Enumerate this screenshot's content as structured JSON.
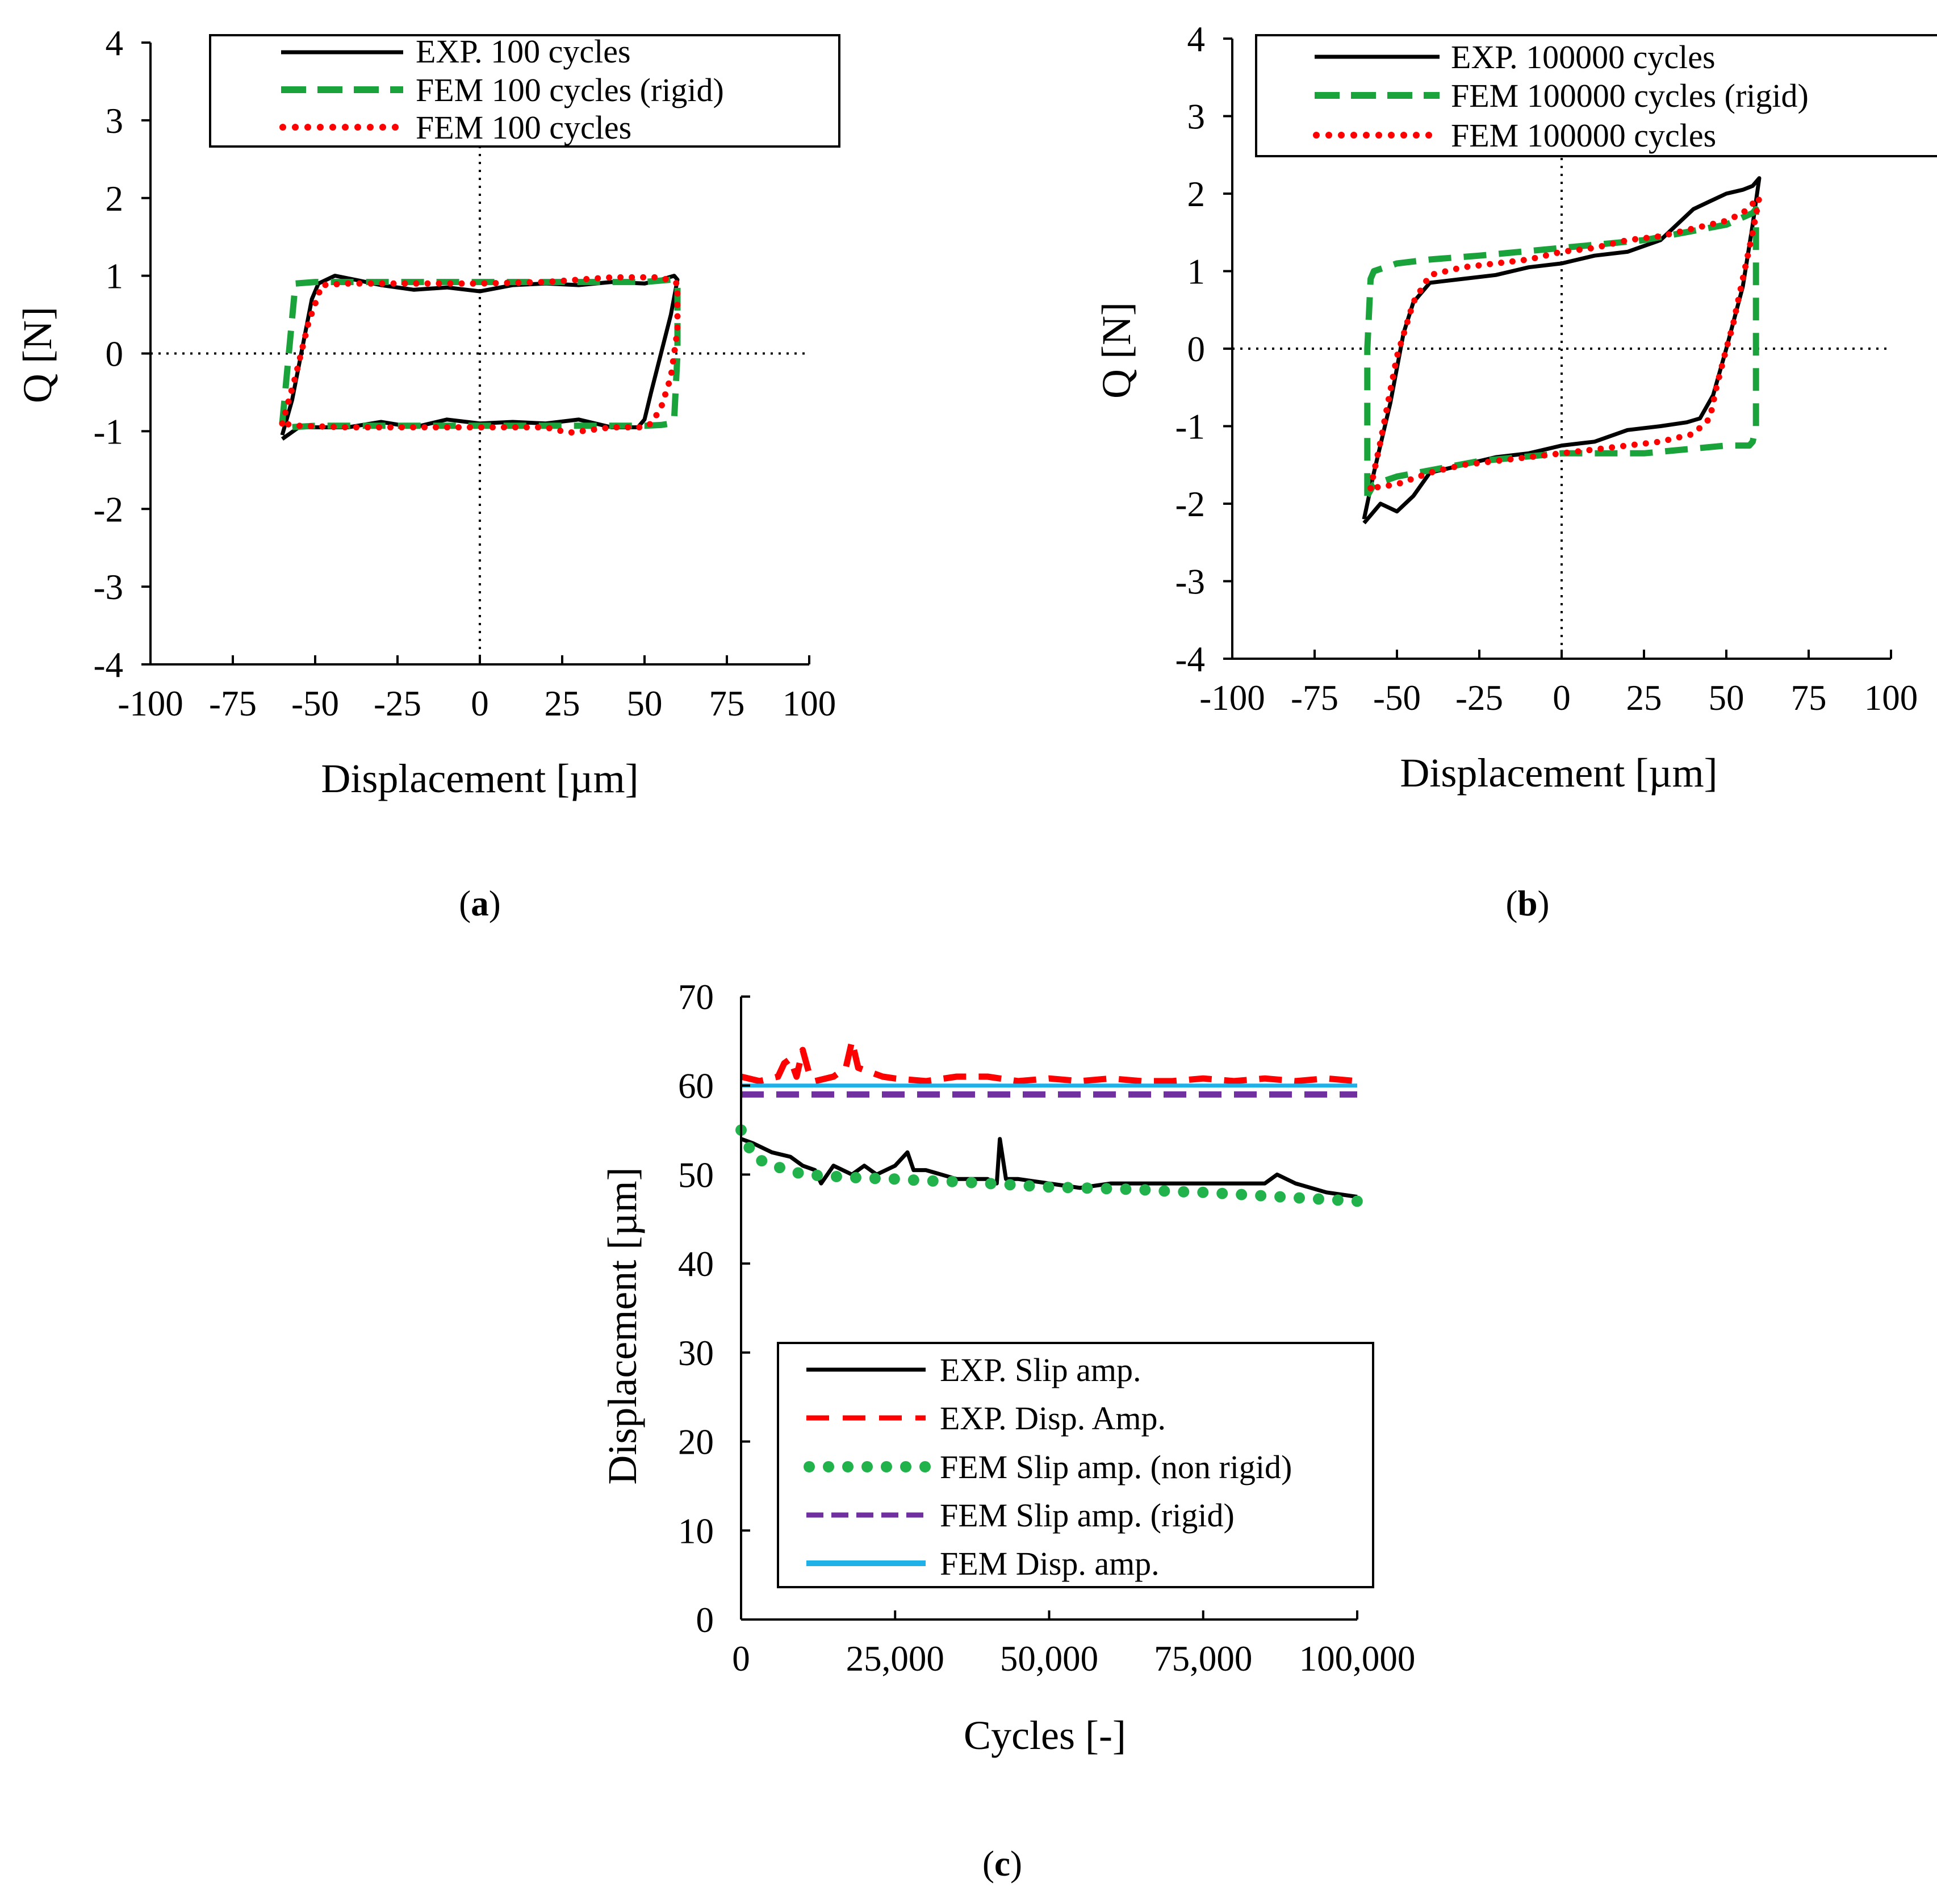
{
  "figure": {
    "panel_labels": [
      {
        "open": "(",
        "letter": "a",
        "close": ")"
      },
      {
        "open": "(",
        "letter": "b",
        "close": ")"
      },
      {
        "open": "(",
        "letter": "c",
        "close": ")"
      }
    ]
  },
  "colors": {
    "exp": "#000000",
    "fem_rigid_green": "#1aa33a",
    "fem_red": "#ff0000",
    "fem_dots_green": "#22b24c",
    "fem_rigid_purple": "#7030a0",
    "fem_disp_blue": "#1fb0e8"
  },
  "chart_data": [
    {
      "id": "a",
      "type": "line",
      "xlabel": "Displacement [µm]",
      "ylabel": "Q [N]",
      "xlim": [
        -100,
        100
      ],
      "ylim": [
        -4,
        4
      ],
      "xticks": [
        -100,
        -75,
        -50,
        -25,
        0,
        25,
        50,
        75,
        100
      ],
      "yticks": [
        4,
        3,
        2,
        1,
        0,
        -1,
        -2,
        -3,
        -4
      ],
      "xtick_labels": [
        "-100",
        "-75",
        "-50",
        "-25",
        "0",
        "25",
        "50",
        "75",
        "100"
      ],
      "ytick_labels": [
        "4",
        "3",
        "2",
        "1",
        "0",
        "-1",
        "-2",
        "-3",
        "-4"
      ],
      "legend_position": "top",
      "series": [
        {
          "name": "EXP. 100 cycles",
          "style": "solid",
          "color_key": "exp",
          "x": [
            -60,
            -57,
            -51,
            -49,
            -44,
            -38,
            -30,
            -20,
            -10,
            0,
            10,
            20,
            30,
            40,
            50,
            55,
            59,
            60,
            58,
            55,
            52,
            50,
            48,
            45,
            40,
            30,
            20,
            10,
            0,
            -10,
            -20,
            -30,
            -40,
            -50,
            -55,
            -60
          ],
          "y": [
            -1.05,
            -0.6,
            0.7,
            0.9,
            1.0,
            0.95,
            0.88,
            0.82,
            0.85,
            0.8,
            0.88,
            0.9,
            0.88,
            0.92,
            0.9,
            0.95,
            1.0,
            0.95,
            0.5,
            0.0,
            -0.5,
            -0.85,
            -0.95,
            -0.95,
            -0.95,
            -0.85,
            -0.9,
            -0.88,
            -0.9,
            -0.85,
            -0.95,
            -0.88,
            -0.95,
            -0.95,
            -0.95,
            -1.1
          ]
        },
        {
          "name": "FEM 100 cycles (rigid)",
          "style": "dashed",
          "color_key": "fem_rigid_green",
          "x": [
            -60,
            -58,
            -56,
            -50,
            -25,
            0,
            25,
            50,
            58,
            60,
            60,
            59,
            58,
            55,
            50,
            25,
            0,
            -25,
            -50,
            -58,
            -60
          ],
          "y": [
            -0.9,
            0.0,
            0.9,
            0.92,
            0.92,
            0.92,
            0.92,
            0.92,
            0.95,
            0.9,
            0.0,
            -0.85,
            -0.9,
            -0.92,
            -0.93,
            -0.93,
            -0.93,
            -0.93,
            -0.93,
            -0.95,
            -0.9
          ]
        },
        {
          "name": "FEM 100 cycles",
          "style": "dotted",
          "color_key": "fem_red",
          "x": [
            -60,
            -56,
            -52,
            -48,
            -40,
            -20,
            0,
            20,
            40,
            55,
            60,
            60,
            58,
            55,
            52,
            50,
            40,
            27,
            20,
            0,
            -20,
            -40,
            -55,
            -60
          ],
          "y": [
            -0.9,
            -0.3,
            0.4,
            0.88,
            0.9,
            0.9,
            0.9,
            0.92,
            0.98,
            0.98,
            0.9,
            0.3,
            -0.3,
            -0.7,
            -0.9,
            -0.95,
            -0.95,
            -1.02,
            -0.95,
            -0.95,
            -0.95,
            -0.95,
            -0.93,
            -0.9
          ]
        }
      ]
    },
    {
      "id": "b",
      "type": "line",
      "xlabel": "Displacement [µm]",
      "ylabel": "Q [N]",
      "xlim": [
        -100,
        100
      ],
      "ylim": [
        -4,
        4
      ],
      "xticks": [
        -100,
        -75,
        -50,
        -25,
        0,
        25,
        50,
        75,
        100
      ],
      "yticks": [
        4,
        3,
        2,
        1,
        0,
        -1,
        -2,
        -3,
        -4
      ],
      "xtick_labels": [
        "-100",
        "-75",
        "-50",
        "-25",
        "0",
        "25",
        "50",
        "75",
        "100"
      ],
      "ytick_labels": [
        "4",
        "3",
        "2",
        "1",
        "0",
        "-1",
        "-2",
        "-3",
        "-4"
      ],
      "legend_position": "top",
      "series": [
        {
          "name": "EXP. 100000 cycles",
          "style": "solid",
          "color_key": "exp",
          "x": [
            -60,
            -57,
            -52,
            -48,
            -45,
            -40,
            -30,
            -20,
            -10,
            0,
            10,
            20,
            30,
            35,
            40,
            45,
            50,
            55,
            58,
            60,
            58,
            55,
            50,
            46,
            42,
            38,
            30,
            20,
            10,
            0,
            -10,
            -20,
            -30,
            -40,
            -45,
            -50,
            -55,
            -60
          ],
          "y": [
            -2.2,
            -1.6,
            -0.7,
            0.2,
            0.6,
            0.85,
            0.9,
            0.95,
            1.05,
            1.1,
            1.2,
            1.25,
            1.4,
            1.6,
            1.8,
            1.9,
            2.0,
            2.05,
            2.1,
            2.2,
            1.6,
            0.8,
            0.0,
            -0.6,
            -0.9,
            -0.95,
            -1.0,
            -1.05,
            -1.2,
            -1.25,
            -1.35,
            -1.4,
            -1.5,
            -1.6,
            -1.9,
            -2.1,
            -2.0,
            -2.25
          ]
        },
        {
          "name": "FEM 100000 cycles (rigid)",
          "style": "dashed",
          "color_key": "fem_rigid_green",
          "x": [
            -59,
            -59,
            -58,
            -57,
            -50,
            -40,
            -25,
            0,
            25,
            50,
            58,
            59,
            59,
            58,
            57,
            50,
            25,
            0,
            -25,
            -50,
            -57,
            -59
          ],
          "y": [
            -1.9,
            0.0,
            0.9,
            1.0,
            1.1,
            1.15,
            1.2,
            1.3,
            1.4,
            1.6,
            1.75,
            1.8,
            -1.0,
            -1.2,
            -1.25,
            -1.25,
            -1.35,
            -1.35,
            -1.45,
            -1.65,
            -1.75,
            -1.9
          ]
        },
        {
          "name": "FEM 100000 cycles",
          "style": "dotted",
          "color_key": "fem_red",
          "x": [
            -58,
            -55,
            -50,
            -45,
            -40,
            -30,
            -20,
            -10,
            0,
            10,
            20,
            30,
            40,
            50,
            55,
            60,
            58,
            55,
            52,
            50,
            47,
            45,
            40,
            30,
            20,
            10,
            0,
            -10,
            -20,
            -30,
            -40,
            -50,
            -58
          ],
          "y": [
            -1.8,
            -1.2,
            -0.1,
            0.6,
            0.95,
            1.05,
            1.1,
            1.15,
            1.25,
            1.3,
            1.4,
            1.45,
            1.55,
            1.65,
            1.75,
            1.95,
            1.5,
            0.9,
            0.3,
            0.0,
            -0.5,
            -0.9,
            -1.1,
            -1.2,
            -1.25,
            -1.3,
            -1.35,
            -1.4,
            -1.45,
            -1.5,
            -1.6,
            -1.75,
            -1.8
          ]
        }
      ]
    },
    {
      "id": "c",
      "type": "line",
      "xlabel": "Cycles [-]",
      "ylabel": "Displacement [µm]",
      "xlim": [
        0,
        100000
      ],
      "ylim": [
        0,
        70
      ],
      "xticks": [
        0,
        25000,
        50000,
        75000,
        100000
      ],
      "yticks": [
        70,
        60,
        50,
        40,
        30,
        20,
        10,
        0
      ],
      "xtick_labels": [
        "0",
        "25,000",
        "50,000",
        "75,000",
        "100,000"
      ],
      "ytick_labels": [
        "70",
        "60",
        "50",
        "40",
        "30",
        "20",
        "10",
        "0"
      ],
      "legend_position": "bottom-center",
      "series": [
        {
          "name": "EXP. Slip amp.",
          "style": "solid",
          "color_key": "exp",
          "x": [
            0,
            2000,
            5000,
            8000,
            10000,
            12000,
            13000,
            15000,
            18000,
            20000,
            22000,
            25000,
            27000,
            28000,
            30000,
            35000,
            40000,
            41500,
            42000,
            43000,
            45000,
            50000,
            55000,
            60000,
            65000,
            70000,
            75000,
            80000,
            85000,
            87000,
            90000,
            95000,
            100000
          ],
          "y": [
            54,
            53.5,
            52.5,
            52,
            51,
            50.5,
            49,
            51,
            50,
            51,
            50,
            51,
            52.5,
            50.5,
            50.5,
            49.5,
            49.5,
            49,
            54,
            49.5,
            49.5,
            49,
            48.5,
            49,
            49,
            49,
            49,
            49,
            49,
            50,
            49,
            48,
            47.5
          ]
        },
        {
          "name": "EXP. Disp. Amp.",
          "style": "dashed",
          "color_key": "fem_red",
          "x": [
            0,
            3000,
            6000,
            7000,
            8000,
            9000,
            10000,
            11000,
            12000,
            15000,
            17000,
            18000,
            19000,
            21000,
            23000,
            25000,
            30000,
            35000,
            40000,
            45000,
            50000,
            55000,
            60000,
            65000,
            70000,
            75000,
            80000,
            85000,
            90000,
            95000,
            100000
          ],
          "y": [
            61,
            60.5,
            61,
            62.5,
            63,
            61,
            64,
            61.5,
            60.5,
            61,
            62,
            65,
            62,
            61.5,
            61,
            60.8,
            60.5,
            61,
            61,
            60.5,
            60.8,
            60.5,
            60.8,
            60.5,
            60.5,
            60.8,
            60.5,
            60.8,
            60.5,
            60.8,
            60.5
          ]
        },
        {
          "name": "FEM Slip amp. (non rigid)",
          "style": "dots",
          "color_key": "fem_dots_green",
          "x": [
            0,
            2000,
            5000,
            8000,
            10000,
            15000,
            20000,
            25000,
            30000,
            35000,
            40000,
            45000,
            50000,
            55000,
            60000,
            65000,
            70000,
            75000,
            80000,
            85000,
            90000,
            95000,
            100000
          ],
          "y": [
            55,
            52,
            51,
            50.5,
            50,
            49.8,
            49.6,
            49.5,
            49.3,
            49.2,
            49,
            48.8,
            48.6,
            48.5,
            48.4,
            48.3,
            48.1,
            48,
            47.8,
            47.6,
            47.4,
            47.2,
            47
          ]
        },
        {
          "name": "FEM Slip amp. (rigid)",
          "style": "dashed",
          "color_key": "fem_rigid_purple",
          "x": [
            0,
            100000
          ],
          "y": [
            59,
            59
          ]
        },
        {
          "name": "FEM Disp. amp.",
          "style": "solid",
          "color_key": "fem_disp_blue",
          "x": [
            0,
            100000
          ],
          "y": [
            60,
            60
          ]
        }
      ]
    }
  ]
}
